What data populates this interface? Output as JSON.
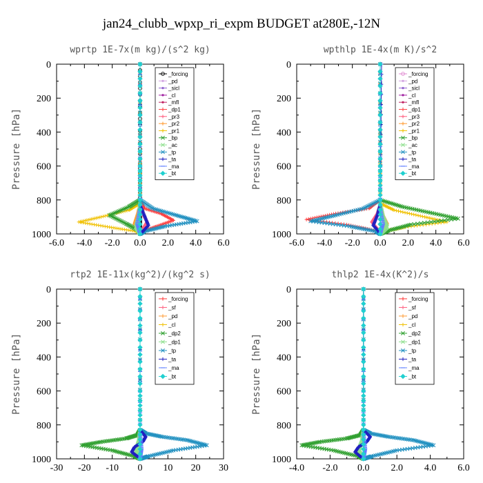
{
  "figure_title": "jan24_clubb_wpxp_ri_expm  BUDGET at280E,-12N",
  "chart_data": [
    {
      "type": "line",
      "title": "wprtp  1E-7x(m kg)/(s^2 kg)",
      "ylabel": "Pressure [hPa]",
      "xlim": [
        -6,
        6
      ],
      "ylim": [
        1000,
        0
      ],
      "xticks": [
        "-6.0",
        "-4.0",
        "-2.0",
        "0.0",
        "2.0",
        "4.0",
        "6.0"
      ],
      "yticks": [
        "0",
        "200",
        "400",
        "600",
        "800",
        "1000"
      ],
      "series": [
        {
          "name": "_forcing",
          "color": "#000000",
          "marker": "circle",
          "x": [
            0,
            0,
            0,
            0
          ],
          "y": [
            0,
            500,
            900,
            1000
          ]
        },
        {
          "name": "_pd",
          "color": "#d0a0e0",
          "marker": "dot",
          "x": [
            0,
            0,
            0
          ],
          "y": [
            0,
            600,
            1000
          ]
        },
        {
          "name": "_sicl",
          "color": "#9060d0",
          "marker": "dot",
          "x": [
            0,
            0,
            0
          ],
          "y": [
            0,
            600,
            1000
          ]
        },
        {
          "name": "_cl",
          "color": "#a020a0",
          "marker": "dot",
          "x": [
            0,
            0,
            0
          ],
          "y": [
            0,
            600,
            1000
          ]
        },
        {
          "name": "_mfl",
          "color": "#c02060",
          "marker": "dot",
          "x": [
            0,
            0,
            0
          ],
          "y": [
            0,
            600,
            1000
          ]
        },
        {
          "name": "_dp1",
          "color": "#ff4040",
          "marker": "plus",
          "x": [
            0,
            0,
            0.3,
            1.5,
            2.4,
            1.2,
            0.2,
            0
          ],
          "y": [
            0,
            800,
            850,
            880,
            920,
            955,
            985,
            1000
          ]
        },
        {
          "name": "_pr3",
          "color": "#ff6080",
          "marker": "plus",
          "x": [
            0,
            0,
            0.2,
            0.5,
            0.2,
            0
          ],
          "y": [
            0,
            820,
            880,
            930,
            970,
            1000
          ]
        },
        {
          "name": "_pr2",
          "color": "#ff9a30",
          "marker": "plus",
          "x": [
            0,
            0,
            -0.2,
            -0.4,
            -0.2,
            0
          ],
          "y": [
            0,
            830,
            890,
            940,
            975,
            1000
          ]
        },
        {
          "name": "_pr1",
          "color": "#f0c000",
          "marker": "plus",
          "x": [
            0,
            0,
            -0.8,
            -2.8,
            -4.4,
            -2.2,
            -0.3,
            0
          ],
          "y": [
            0,
            820,
            860,
            900,
            930,
            960,
            985,
            1000
          ]
        },
        {
          "name": "_bp",
          "color": "#30a030",
          "marker": "cross",
          "x": [
            0,
            0,
            -0.8,
            -2.2,
            -1.0,
            -0.1,
            0
          ],
          "y": [
            0,
            800,
            840,
            890,
            940,
            980,
            1000
          ]
        },
        {
          "name": "_ac",
          "color": "#90e090",
          "marker": "cross",
          "x": [
            0,
            0,
            -0.1,
            -0.3,
            0
          ],
          "y": [
            0,
            820,
            900,
            960,
            1000
          ]
        },
        {
          "name": "_tp",
          "color": "#2090c0",
          "marker": "cross",
          "x": [
            0,
            0,
            0.9,
            2.6,
            4.1,
            1.8,
            0.3,
            0
          ],
          "y": [
            0,
            800,
            850,
            890,
            925,
            955,
            985,
            1000
          ]
        },
        {
          "name": "_ta",
          "color": "#2020c0",
          "marker": "plus",
          "x": [
            0,
            0,
            0.3,
            0.6,
            0.2,
            0
          ],
          "y": [
            0,
            830,
            890,
            950,
            985,
            1000
          ]
        },
        {
          "name": "_ma",
          "color": "#6080ff",
          "marker": "dash",
          "x": [
            0,
            0,
            -0.2,
            0
          ],
          "y": [
            0,
            850,
            940,
            1000
          ]
        },
        {
          "name": "_bt",
          "color": "#20d0d0",
          "marker": "diamond",
          "x": [
            0,
            0,
            0
          ],
          "y": [
            0,
            600,
            1000
          ]
        }
      ]
    },
    {
      "type": "line",
      "title": "wpthlp  1E-4x(m K)/s^2",
      "ylabel": "Pressure [hPa]",
      "xlim": [
        -6,
        6
      ],
      "ylim": [
        1000,
        0
      ],
      "xticks": [
        "-6.0",
        "-4.0",
        "-2.0",
        "0.0",
        "2.0",
        "4.0",
        "6.0"
      ],
      "yticks": [
        "0",
        "200",
        "400",
        "600",
        "800",
        "1000"
      ],
      "series": [
        {
          "name": "_forcing",
          "color": "#e08ad0",
          "marker": "circle",
          "x": [
            0,
            0,
            0
          ],
          "y": [
            0,
            600,
            1000
          ]
        },
        {
          "name": "_pd",
          "color": "#d0a0e0",
          "marker": "dot",
          "x": [
            0,
            0,
            0
          ],
          "y": [
            0,
            600,
            1000
          ]
        },
        {
          "name": "_sicl",
          "color": "#9060d0",
          "marker": "dot",
          "x": [
            0,
            0,
            0
          ],
          "y": [
            0,
            600,
            1000
          ]
        },
        {
          "name": "_cl",
          "color": "#a020a0",
          "marker": "dot",
          "x": [
            0,
            0,
            0
          ],
          "y": [
            0,
            600,
            1000
          ]
        },
        {
          "name": "_mfl",
          "color": "#c02060",
          "marker": "dot",
          "x": [
            0,
            0,
            0
          ],
          "y": [
            0,
            600,
            1000
          ]
        },
        {
          "name": "_dp1",
          "color": "#ff4040",
          "marker": "plus",
          "x": [
            0,
            0,
            -0.8,
            -3.2,
            -5.3,
            -2.4,
            -0.3,
            0
          ],
          "y": [
            0,
            800,
            850,
            880,
            915,
            945,
            980,
            1000
          ]
        },
        {
          "name": "_pr3",
          "color": "#ff6080",
          "marker": "plus",
          "x": [
            0,
            0,
            -0.2,
            -0.6,
            -0.2,
            0
          ],
          "y": [
            0,
            830,
            880,
            930,
            970,
            1000
          ]
        },
        {
          "name": "_pr2",
          "color": "#ff9a30",
          "marker": "plus",
          "x": [
            0,
            0,
            0.2,
            0.5,
            0.2,
            0
          ],
          "y": [
            0,
            830,
            890,
            940,
            975,
            1000
          ]
        },
        {
          "name": "_pr1",
          "color": "#f0c000",
          "marker": "plus",
          "x": [
            0,
            0,
            1.0,
            3.2,
            4.8,
            1.8,
            0.2,
            0
          ],
          "y": [
            0,
            820,
            860,
            900,
            930,
            960,
            985,
            1000
          ]
        },
        {
          "name": "_bp",
          "color": "#30a030",
          "marker": "cross",
          "x": [
            0,
            0,
            1.6,
            3.6,
            5.6,
            2.2,
            0.6,
            0
          ],
          "y": [
            0,
            800,
            840,
            875,
            910,
            945,
            980,
            1000
          ]
        },
        {
          "name": "_ac",
          "color": "#90e090",
          "marker": "cross",
          "x": [
            0,
            0,
            0.2,
            0.5,
            0
          ],
          "y": [
            0,
            820,
            900,
            960,
            1000
          ]
        },
        {
          "name": "_tp",
          "color": "#2090c0",
          "marker": "cross",
          "x": [
            0,
            0,
            -1.2,
            -3.2,
            -5.0,
            -2.2,
            -0.3,
            0
          ],
          "y": [
            0,
            800,
            850,
            890,
            925,
            955,
            985,
            1000
          ]
        },
        {
          "name": "_ta",
          "color": "#2020c0",
          "marker": "plus",
          "x": [
            0.1,
            0,
            -0.2,
            -0.5,
            -0.1,
            0
          ],
          "y": [
            0,
            830,
            890,
            950,
            985,
            1000
          ]
        },
        {
          "name": "_ma",
          "color": "#6080ff",
          "marker": "dash",
          "x": [
            0,
            0,
            0.2,
            0
          ],
          "y": [
            0,
            850,
            940,
            1000
          ]
        },
        {
          "name": "_bt",
          "color": "#20d0d0",
          "marker": "diamond",
          "x": [
            0,
            0,
            0
          ],
          "y": [
            0,
            600,
            1000
          ]
        }
      ]
    },
    {
      "type": "line",
      "title": "rtp2  1E-11x(kg^2)/(kg^2 s)",
      "ylabel": "Pressure [hPa]",
      "xlim": [
        -30,
        30
      ],
      "ylim": [
        1000,
        0
      ],
      "xticks": [
        "-30",
        "-20",
        "-10",
        "0",
        "10",
        "20",
        "30"
      ],
      "yticks": [
        "0",
        "200",
        "400",
        "600",
        "800",
        "1000"
      ],
      "series": [
        {
          "name": "_forcing",
          "color": "#ff3030",
          "marker": "plus",
          "x": [
            0,
            0,
            0
          ],
          "y": [
            0,
            600,
            1000
          ]
        },
        {
          "name": "_sf",
          "color": "#ff6080",
          "marker": "plus",
          "x": [
            0,
            0,
            0
          ],
          "y": [
            0,
            600,
            1000
          ]
        },
        {
          "name": "_pd",
          "color": "#ff9a30",
          "marker": "plus",
          "x": [
            0,
            0,
            0
          ],
          "y": [
            0,
            600,
            1000
          ]
        },
        {
          "name": "_cl",
          "color": "#f0c000",
          "marker": "plus",
          "x": [
            0,
            0,
            0
          ],
          "y": [
            0,
            600,
            1000
          ]
        },
        {
          "name": "_dp2",
          "color": "#30a030",
          "marker": "cross",
          "x": [
            0,
            0,
            -1,
            -5,
            -14,
            -21,
            -10,
            -2,
            0
          ],
          "y": [
            0,
            830,
            860,
            880,
            900,
            920,
            950,
            985,
            1000
          ]
        },
        {
          "name": "_dp1",
          "color": "#90e090",
          "marker": "cross",
          "x": [
            0,
            0,
            -0.5,
            -1.5,
            -0.5,
            0
          ],
          "y": [
            0,
            830,
            900,
            950,
            985,
            1000
          ]
        },
        {
          "name": "_tp",
          "color": "#2090c0",
          "marker": "cross",
          "x": [
            0,
            0,
            2,
            8,
            17,
            24,
            12,
            3,
            0
          ],
          "y": [
            0,
            830,
            850,
            870,
            890,
            920,
            950,
            985,
            1000
          ]
        },
        {
          "name": "_ta",
          "color": "#2020c0",
          "marker": "plus",
          "x": [
            0,
            0,
            1,
            2,
            1,
            -2,
            -3,
            -1,
            0
          ],
          "y": [
            0,
            830,
            850,
            870,
            900,
            930,
            960,
            985,
            1000
          ]
        },
        {
          "name": "_ma",
          "color": "#6080ff",
          "marker": "dash",
          "x": [
            0,
            0,
            0.5,
            0
          ],
          "y": [
            0,
            850,
            940,
            1000
          ]
        },
        {
          "name": "_bt",
          "color": "#20d0d0",
          "marker": "diamond",
          "x": [
            0,
            0,
            0
          ],
          "y": [
            0,
            600,
            1000
          ]
        }
      ]
    },
    {
      "type": "line",
      "title": "thlp2  1E-4x(K^2)/s",
      "ylabel": "Pressure [hPa]",
      "xlim": [
        -4,
        6
      ],
      "ylim": [
        1000,
        0
      ],
      "xticks": [
        "-4.0",
        "-2.0",
        "0.0",
        "2.0",
        "4.0",
        "6.0"
      ],
      "yticks": [
        "0",
        "200",
        "400",
        "600",
        "800",
        "1000"
      ],
      "series": [
        {
          "name": "_forcing",
          "color": "#ff3030",
          "marker": "plus",
          "x": [
            0,
            0,
            0
          ],
          "y": [
            0,
            600,
            1000
          ]
        },
        {
          "name": "_sf",
          "color": "#ff6080",
          "marker": "plus",
          "x": [
            0,
            0,
            0
          ],
          "y": [
            0,
            600,
            1000
          ]
        },
        {
          "name": "_pd",
          "color": "#ff9a30",
          "marker": "plus",
          "x": [
            0,
            0,
            0
          ],
          "y": [
            0,
            600,
            1000
          ]
        },
        {
          "name": "_cl",
          "color": "#f0c000",
          "marker": "plus",
          "x": [
            0,
            0,
            0
          ],
          "y": [
            0,
            600,
            1000
          ]
        },
        {
          "name": "_dp2",
          "color": "#30a030",
          "marker": "cross",
          "x": [
            0,
            0,
            -0.2,
            -1.0,
            -2.6,
            -3.7,
            -1.8,
            -0.3,
            0
          ],
          "y": [
            0,
            830,
            860,
            880,
            900,
            920,
            950,
            985,
            1000
          ]
        },
        {
          "name": "_dp1",
          "color": "#90e090",
          "marker": "cross",
          "x": [
            0,
            0,
            -0.1,
            -0.3,
            -0.1,
            0
          ],
          "y": [
            0,
            830,
            900,
            950,
            985,
            1000
          ]
        },
        {
          "name": "_tp",
          "color": "#2090c0",
          "marker": "cross",
          "x": [
            0,
            0,
            0.4,
            1.5,
            3.0,
            4.2,
            2.0,
            0.5,
            0
          ],
          "y": [
            0,
            830,
            850,
            870,
            890,
            920,
            950,
            985,
            1000
          ]
        },
        {
          "name": "_ta",
          "color": "#2020c0",
          "marker": "plus",
          "x": [
            0,
            0,
            0.2,
            0.4,
            0.2,
            -0.3,
            -0.5,
            -0.2,
            0
          ],
          "y": [
            0,
            830,
            850,
            870,
            900,
            930,
            960,
            985,
            1000
          ]
        },
        {
          "name": "_ma",
          "color": "#6080ff",
          "marker": "dash",
          "x": [
            0,
            0,
            0.1,
            0
          ],
          "y": [
            0,
            850,
            940,
            1000
          ]
        },
        {
          "name": "_bt",
          "color": "#20d0d0",
          "marker": "diamond",
          "x": [
            0,
            0,
            0
          ],
          "y": [
            0,
            600,
            1000
          ]
        }
      ]
    }
  ]
}
